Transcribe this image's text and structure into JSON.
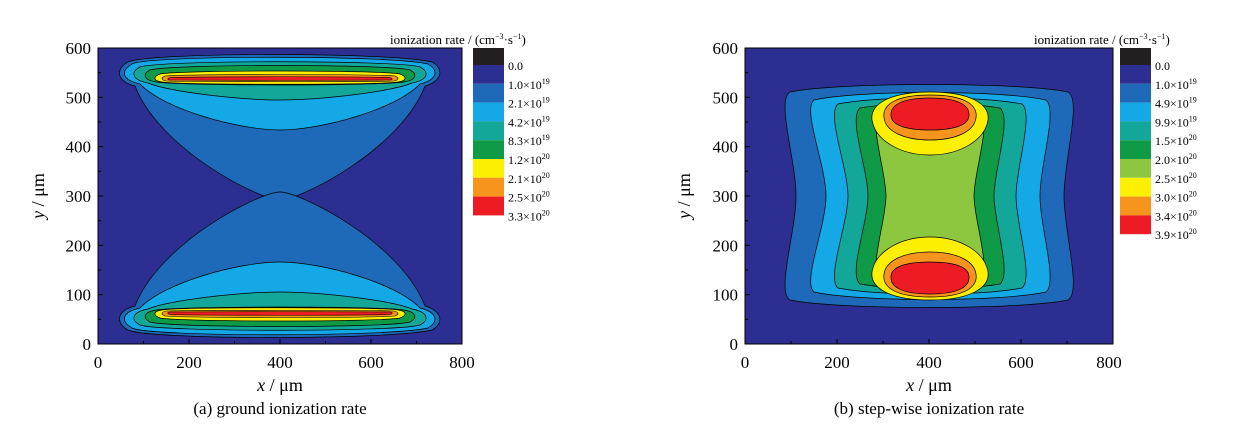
{
  "chart_data": [
    {
      "type": "heatmap",
      "caption": "(a) ground ionization rate",
      "xlabel_var": "x",
      "xlabel_unit": " / μm",
      "ylabel_var": "y",
      "ylabel_unit": " / μm",
      "xlim": [
        0,
        800
      ],
      "ylim": [
        0,
        600
      ],
      "xticks": [
        "0",
        "200",
        "400",
        "600",
        "800"
      ],
      "yticks": [
        "0",
        "100",
        "200",
        "300",
        "400",
        "500",
        "600"
      ],
      "colorbar_title": "ionization rate / (cm",
      "colorbar_title_exp": "−3",
      "colorbar_title_mid": "·s",
      "colorbar_title_exp2": "−1",
      "colorbar_title_end": ")",
      "levels": [
        {
          "m": "0.0",
          "e": "",
          "color": "#2c2f91"
        },
        {
          "m": "1.0×10",
          "e": "19",
          "color": "#1e6ab8"
        },
        {
          "m": "2.1×10",
          "e": "19",
          "color": "#15a8e6"
        },
        {
          "m": "4.2×10",
          "e": "19",
          "color": "#13a79a"
        },
        {
          "m": "8.3×10",
          "e": "19",
          "color": "#0e9a47"
        },
        {
          "m": "1.2×10",
          "e": "20",
          "color": "#fcf000"
        },
        {
          "m": "2.1×10",
          "e": "20",
          "color": "#f7941d"
        },
        {
          "m": "2.5×10",
          "e": "20",
          "color": "#ed1c24"
        },
        {
          "m": "3.3×10",
          "e": "20",
          "color": ""
        }
      ],
      "colors": [
        "#2c2f91",
        "#1e6ab8",
        "#15a8e6",
        "#13a79a",
        "#0e9a47",
        "#fcf000",
        "#f7941d",
        "#ed1c24"
      ]
    },
    {
      "type": "heatmap",
      "caption": "(b) step-wise ionization rate",
      "xlabel_var": "x",
      "xlabel_unit": " / μm",
      "ylabel_var": "y",
      "ylabel_unit": " / μm",
      "xlim": [
        0,
        800
      ],
      "ylim": [
        0,
        600
      ],
      "xticks": [
        "0",
        "200",
        "400",
        "600",
        "800"
      ],
      "yticks": [
        "0",
        "100",
        "200",
        "300",
        "400",
        "500",
        "600"
      ],
      "colorbar_title": "ionization rate / (cm",
      "colorbar_title_exp": "−3",
      "colorbar_title_mid": "·s",
      "colorbar_title_exp2": "−1",
      "colorbar_title_end": ")",
      "levels": [
        {
          "m": "0.0",
          "e": "",
          "color": "#2c2f91"
        },
        {
          "m": "1.0×10",
          "e": "19",
          "color": "#1e6ab8"
        },
        {
          "m": "4.9×10",
          "e": "19",
          "color": "#15a8e6"
        },
        {
          "m": "9.9×10",
          "e": "19",
          "color": "#13a79a"
        },
        {
          "m": "1.5×10",
          "e": "20",
          "color": "#0e9a47"
        },
        {
          "m": "2.0×10",
          "e": "20",
          "color": "#8dc63f"
        },
        {
          "m": "2.5×10",
          "e": "20",
          "color": "#fcf000"
        },
        {
          "m": "3.0×10",
          "e": "20",
          "color": "#f7941d"
        },
        {
          "m": "3.4×10",
          "e": "20",
          "color": "#ed1c24"
        },
        {
          "m": "3.9×10",
          "e": "20",
          "color": ""
        }
      ],
      "colors": [
        "#2c2f91",
        "#1e6ab8",
        "#15a8e6",
        "#13a79a",
        "#0e9a47",
        "#8dc63f",
        "#fcf000",
        "#f7941d",
        "#ed1c24"
      ]
    }
  ]
}
